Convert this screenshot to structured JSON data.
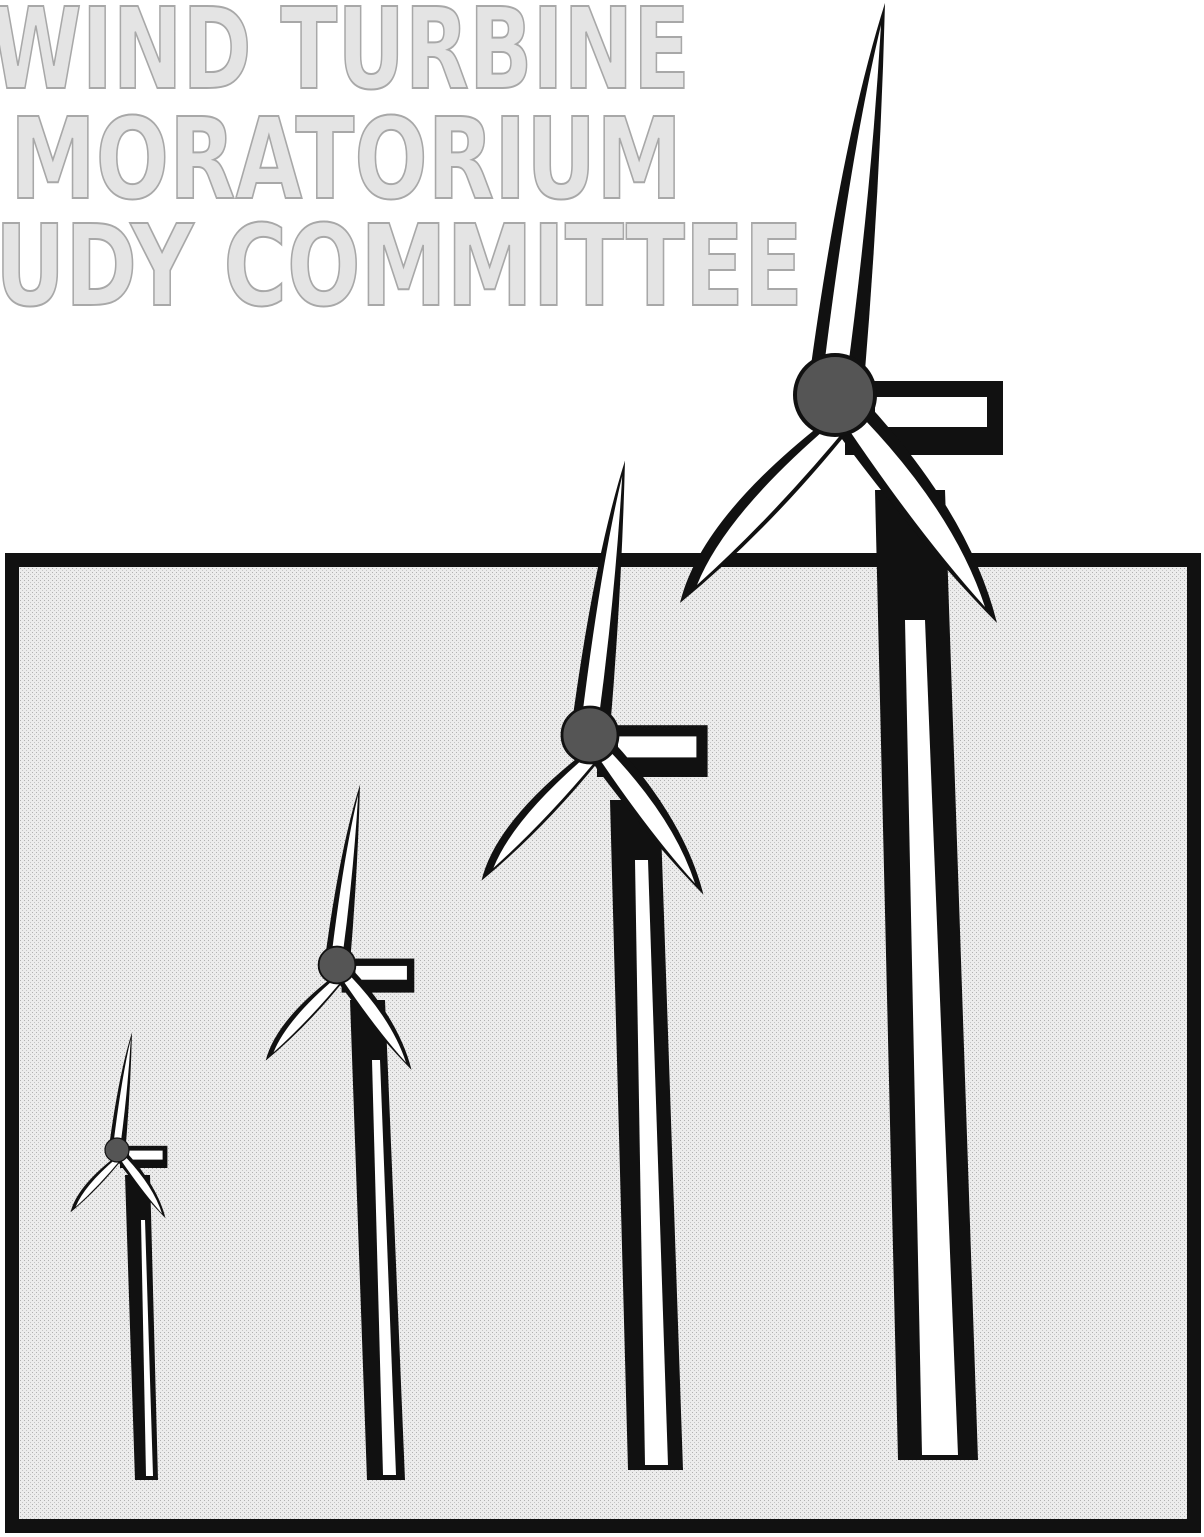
{
  "title_lines": [
    "WIND TURBINE",
    "MORATORIUM",
    "UDY COMMITTEE"
  ]
}
